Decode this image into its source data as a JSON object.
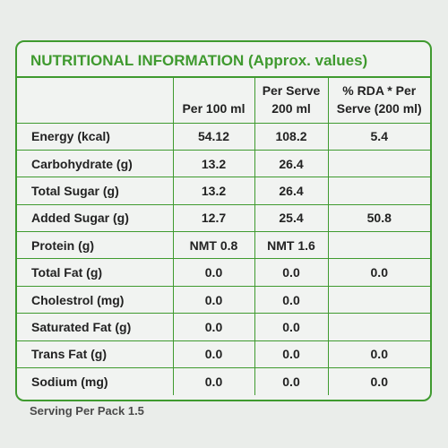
{
  "panel": {
    "title": "NUTRITIONAL INFORMATION (Approx. values)",
    "columns": [
      "",
      "Per 100 ml",
      "Per Serve 200 ml",
      "% RDA * Per Serve (200 ml)"
    ],
    "rows": [
      {
        "nutrient": "Energy (kcal)",
        "per100": "54.12",
        "perServe": "108.2",
        "rda": "5.4"
      },
      {
        "nutrient": "Carbohydrate (g)",
        "per100": "13.2",
        "perServe": "26.4",
        "rda": ""
      },
      {
        "nutrient": "Total Sugar (g)",
        "per100": "13.2",
        "perServe": "26.4",
        "rda": ""
      },
      {
        "nutrient": "Added Sugar (g)",
        "per100": "12.7",
        "perServe": "25.4",
        "rda": "50.8"
      },
      {
        "nutrient": "Protein (g)",
        "per100": "NMT 0.8",
        "perServe": "NMT 1.6",
        "rda": ""
      },
      {
        "nutrient": "Total Fat (g)",
        "per100": "0.0",
        "perServe": "0.0",
        "rda": "0.0"
      },
      {
        "nutrient": "Cholestrol (mg)",
        "per100": "0.0",
        "perServe": "0.0",
        "rda": ""
      },
      {
        "nutrient": "Saturated Fat (g)",
        "per100": "0.0",
        "perServe": "0.0",
        "rda": ""
      },
      {
        "nutrient": "Trans Fat (g)",
        "per100": "0.0",
        "perServe": "0.0",
        "rda": "0.0"
      },
      {
        "nutrient": "Sodium (mg)",
        "per100": "0.0",
        "perServe": "0.0",
        "rda": "0.0"
      }
    ]
  },
  "footer": {
    "serving_text": "Serving Per Pack 1.5"
  },
  "colors": {
    "accent": "#3f9a2f",
    "background": "#f1f3f1"
  }
}
